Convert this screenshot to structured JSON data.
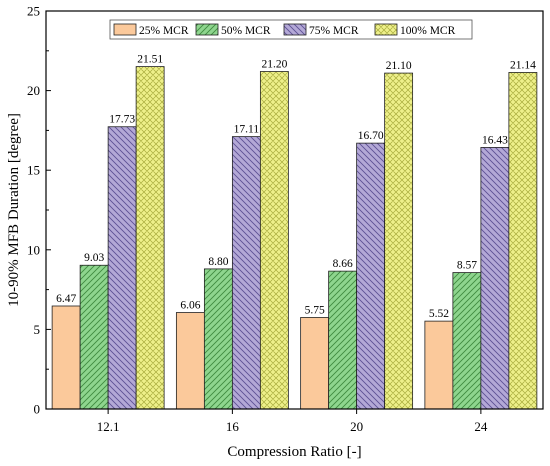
{
  "chart_data": {
    "type": "bar",
    "title": "",
    "xlabel": "Compression Ratio [-]",
    "ylabel": "10-90% MFB Duration [degree]",
    "categories": [
      "12.1",
      "16",
      "20",
      "24"
    ],
    "ylim": [
      0,
      25
    ],
    "yticks": [
      0,
      5,
      10,
      15,
      20,
      25
    ],
    "legend_position": "top",
    "grid": false,
    "series": [
      {
        "name": "25% MCR",
        "values": [
          6.47,
          6.06,
          5.75,
          5.52
        ],
        "labels": [
          "6.47",
          "6.06",
          "5.75",
          "5.52"
        ],
        "color": "#fbc99b",
        "pattern": "solid"
      },
      {
        "name": "50% MCR",
        "values": [
          9.03,
          8.8,
          8.66,
          8.57
        ],
        "labels": [
          "9.03",
          "8.80",
          "8.66",
          "8.57"
        ],
        "color": "#8ed58e",
        "pattern": "diagonal"
      },
      {
        "name": "75% MCR",
        "values": [
          17.73,
          17.11,
          16.7,
          16.43
        ],
        "labels": [
          "17.73",
          "17.11",
          "16.70",
          "16.43"
        ],
        "color": "#b3a8d6",
        "pattern": "backdiagonal"
      },
      {
        "name": "100% MCR",
        "values": [
          21.51,
          21.2,
          21.1,
          21.14
        ],
        "labels": [
          "21.51",
          "21.20",
          "21.10",
          "21.14"
        ],
        "color": "#eef08a",
        "pattern": "crosshatch"
      }
    ]
  }
}
